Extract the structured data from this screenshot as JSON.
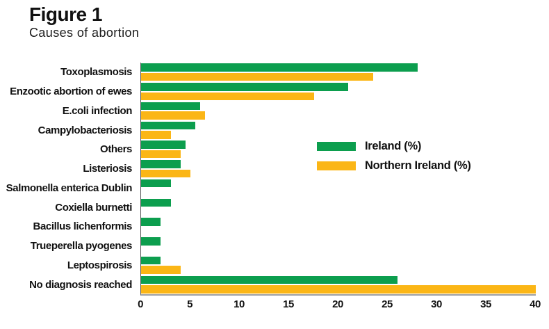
{
  "figure": {
    "title": "Figure 1",
    "subtitle": "Causes of abortion"
  },
  "legend": {
    "items": [
      {
        "label": "Ireland (%)",
        "color": "#0c9e4e"
      },
      {
        "label": "Northern Ireland (%)",
        "color": "#fbb616"
      }
    ]
  },
  "colors": {
    "ireland_green": "#0c9e4e",
    "northern_ireland_orange": "#fbb616",
    "axis_vertical": "#58595b",
    "axis_horizontal": "#9d9fa2",
    "text": "#111111"
  },
  "chart_data": {
    "type": "bar",
    "orientation": "horizontal",
    "title": "Causes of abortion",
    "categories": [
      "Toxoplasmosis",
      "Enzootic abortion of ewes",
      "E.coli infection",
      "Campylobacteriosis",
      "Others",
      "Listeriosis",
      "Salmonella enterica Dublin",
      "Coxiella burnetti",
      "Bacillus lichenformis",
      "Trueperella pyogenes",
      "Leptospirosis",
      "No diagnosis reached"
    ],
    "series": [
      {
        "name": "Ireland (%)",
        "color": "#0c9e4e",
        "values": [
          28,
          21,
          6,
          5.5,
          4.5,
          4,
          3,
          3,
          2,
          2,
          2,
          26
        ]
      },
      {
        "name": "Northern Ireland (%)",
        "color": "#fbb616",
        "values": [
          23.5,
          17.5,
          6.5,
          3,
          4,
          5,
          0,
          0,
          0,
          0,
          4,
          40
        ]
      }
    ],
    "xlim": [
      0,
      40
    ],
    "xticks": [
      0,
      5,
      10,
      15,
      20,
      25,
      30,
      35,
      40
    ],
    "xlabel": "",
    "ylabel": "",
    "grid": false,
    "legend_position": "center-right"
  }
}
